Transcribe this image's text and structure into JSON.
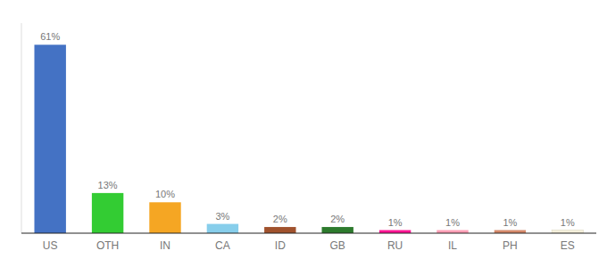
{
  "chart_data": {
    "type": "bar",
    "categories": [
      "US",
      "OTH",
      "IN",
      "CA",
      "ID",
      "GB",
      "RU",
      "IL",
      "PH",
      "ES"
    ],
    "values": [
      61,
      13,
      10,
      3,
      2,
      2,
      1,
      1,
      1,
      1
    ],
    "value_labels": [
      "61%",
      "13%",
      "10%",
      "3%",
      "2%",
      "2%",
      "1%",
      "1%",
      "1%",
      "1%"
    ],
    "colors": [
      "#4472c4",
      "#33cc33",
      "#f5a623",
      "#87ceeb",
      "#a0522d",
      "#2d7a2d",
      "#ff1493",
      "#ff9eb5",
      "#d4896a",
      "#f5f0dc"
    ],
    "data_labels": true,
    "ylim": [
      0,
      68
    ],
    "grid": false,
    "tick_labels": "x"
  }
}
